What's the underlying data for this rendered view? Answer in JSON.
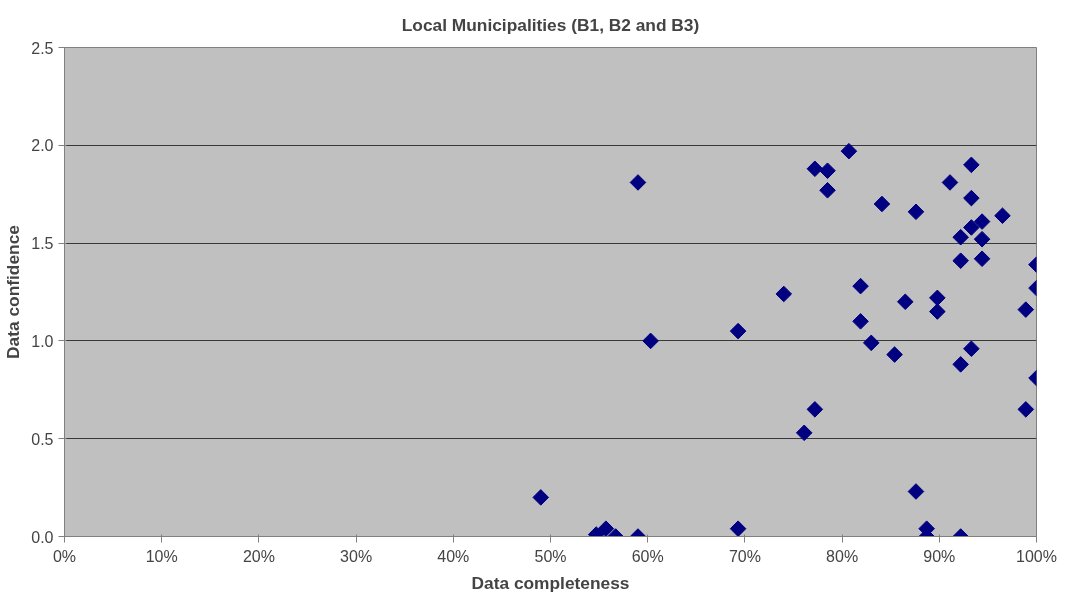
{
  "chart_data": {
    "type": "scatter",
    "title": "Local Municipalities (B1, B2 and B3)",
    "xlabel": "Data completeness",
    "ylabel": "Data confidence",
    "x": [
      49,
      54.7,
      55.7,
      56.7,
      59,
      59,
      60.3,
      69.3,
      69.3,
      74,
      76.1,
      77.2,
      77.2,
      78.5,
      78.5,
      80.7,
      81.9,
      81.9,
      83,
      84.1,
      85.4,
      86.5,
      87.6,
      87.6,
      88.7,
      88.7,
      89.8,
      89.8,
      91.1,
      92.2,
      92.2,
      92.2,
      92.2,
      93.3,
      93.3,
      93.3,
      93.3,
      94.4,
      94.4,
      94.4,
      96.5,
      98.9,
      98.9,
      100,
      100,
      100
    ],
    "values": [
      0.2,
      0.01,
      0.04,
      0.0,
      0.0,
      1.81,
      1.0,
      1.05,
      0.04,
      1.24,
      0.53,
      0.65,
      1.88,
      1.87,
      1.77,
      1.97,
      1.28,
      1.1,
      0.99,
      1.7,
      0.93,
      1.2,
      1.66,
      0.23,
      0.04,
      0.0,
      1.22,
      1.15,
      1.81,
      1.53,
      1.41,
      0.88,
      0.0,
      1.9,
      1.73,
      1.58,
      0.96,
      1.61,
      1.52,
      1.42,
      1.64,
      1.16,
      0.65,
      1.39,
      1.27,
      0.81
    ],
    "color": "#000080",
    "marker": "diamond",
    "xlim": [
      0,
      100
    ],
    "xticks": [
      {
        "value": 0,
        "label": "0%"
      },
      {
        "value": 10,
        "label": "10%"
      },
      {
        "value": 20,
        "label": "20%"
      },
      {
        "value": 30,
        "label": "30%"
      },
      {
        "value": 40,
        "label": "40%"
      },
      {
        "value": 50,
        "label": "50%"
      },
      {
        "value": 60,
        "label": "60%"
      },
      {
        "value": 70,
        "label": "70%"
      },
      {
        "value": 80,
        "label": "80%"
      },
      {
        "value": 90,
        "label": "90%"
      },
      {
        "value": 100,
        "label": "100%"
      }
    ],
    "ylim": [
      0,
      2.5
    ],
    "yticks": [
      {
        "value": 0,
        "label": "0.0"
      },
      {
        "value": 0.5,
        "label": "0.5"
      },
      {
        "value": 1,
        "label": "1.0"
      },
      {
        "value": 1.5,
        "label": "1.5"
      },
      {
        "value": 2,
        "label": "2.0"
      },
      {
        "value": 2.5,
        "label": "2.5"
      }
    ],
    "grid": "y"
  }
}
